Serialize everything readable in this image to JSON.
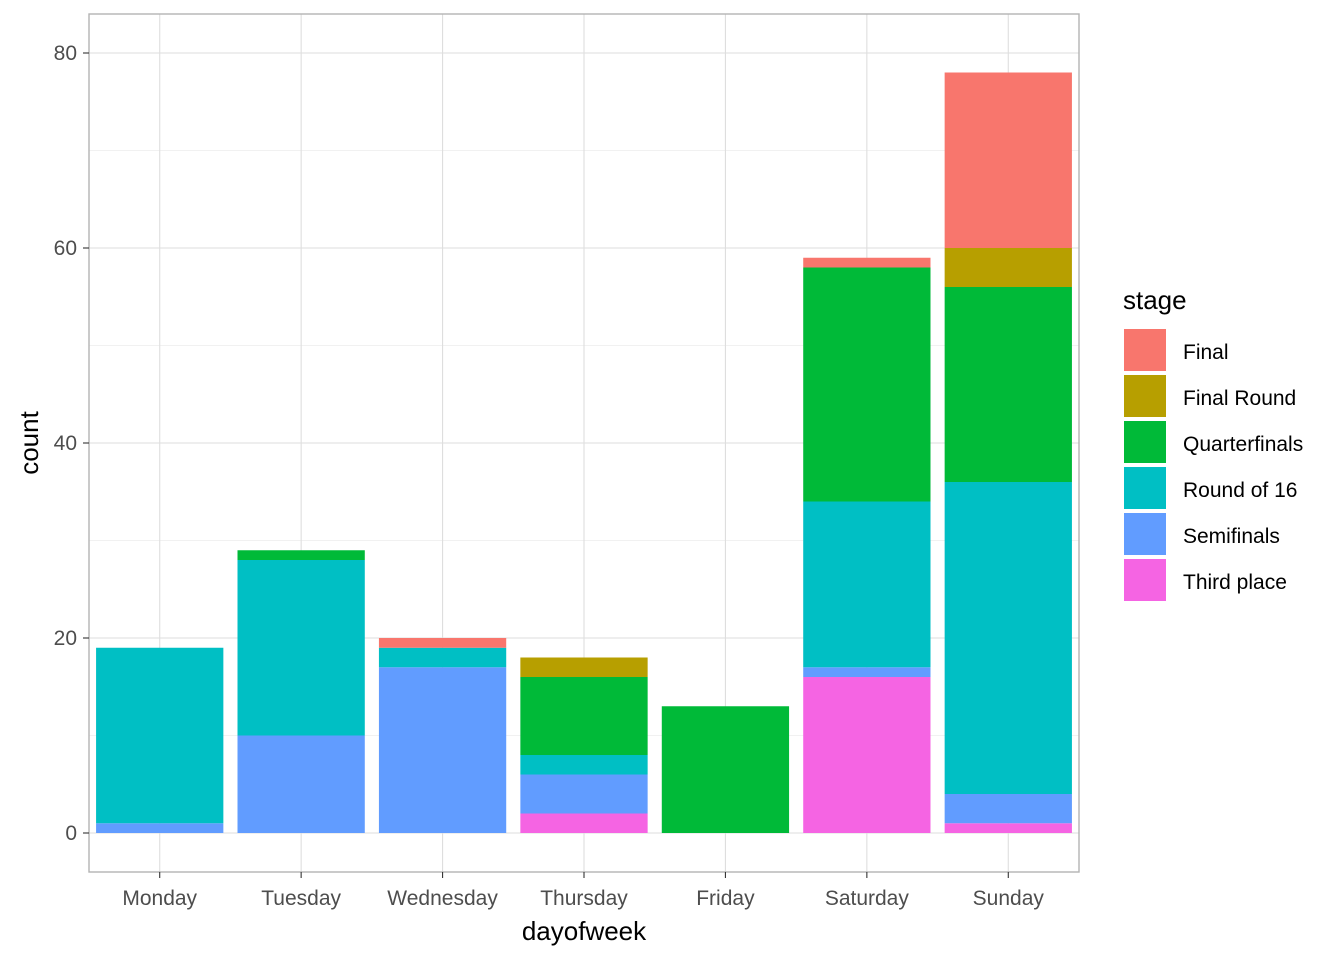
{
  "chart_data": {
    "type": "bar",
    "stacked": true,
    "title": "",
    "xlabel": "dayofweek",
    "ylabel": "count",
    "ylim": [
      -4,
      84
    ],
    "yticks": [
      0,
      20,
      40,
      60,
      80
    ],
    "grid": true,
    "legend": {
      "title": "stage",
      "position": "right"
    },
    "categories": [
      "Monday",
      "Tuesday",
      "Wednesday",
      "Thursday",
      "Friday",
      "Saturday",
      "Sunday"
    ],
    "series": [
      {
        "name": "Final",
        "color": "#F8766D",
        "values": [
          0,
          0,
          1,
          0,
          0,
          1,
          18
        ]
      },
      {
        "name": "Final Round",
        "color": "#B79F00",
        "values": [
          0,
          0,
          0,
          2,
          0,
          0,
          4
        ]
      },
      {
        "name": "Quarterfinals",
        "color": "#00BA38",
        "values": [
          0,
          1,
          0,
          8,
          13,
          24,
          20
        ]
      },
      {
        "name": "Round of 16",
        "color": "#00BFC4",
        "values": [
          18,
          18,
          2,
          2,
          0,
          17,
          32
        ]
      },
      {
        "name": "Semifinals",
        "color": "#619CFF",
        "values": [
          1,
          10,
          17,
          4,
          0,
          1,
          3
        ]
      },
      {
        "name": "Third place",
        "color": "#F564E3",
        "values": [
          0,
          0,
          0,
          2,
          0,
          16,
          1
        ]
      }
    ]
  }
}
